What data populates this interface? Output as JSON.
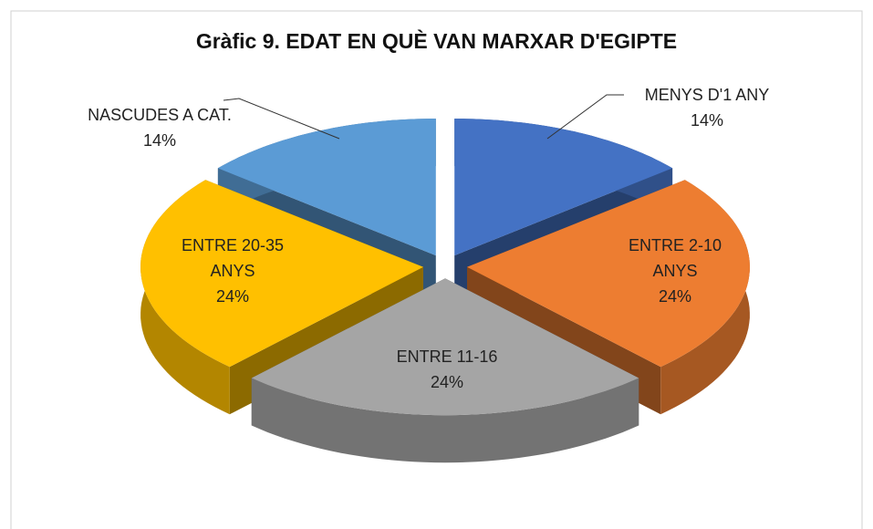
{
  "chart_data": {
    "type": "pie3d",
    "title": "Gràfic 9. EDAT EN QUÈ VAN MARXAR D'EGIPTE",
    "categories": [
      "MENYS D'1 ANY",
      "ENTRE 2-10 ANYS",
      "ENTRE 11-16",
      "ENTRE 20-35 ANYS",
      "NASCUDES A CAT."
    ],
    "values": [
      14,
      24,
      24,
      24,
      14
    ],
    "value_labels": [
      "14%",
      "24%",
      "24%",
      "24%",
      "14%"
    ],
    "colors": [
      "#4472c4",
      "#ed7d31",
      "#a5a5a5",
      "#ffc000",
      "#5b9bd5"
    ]
  }
}
